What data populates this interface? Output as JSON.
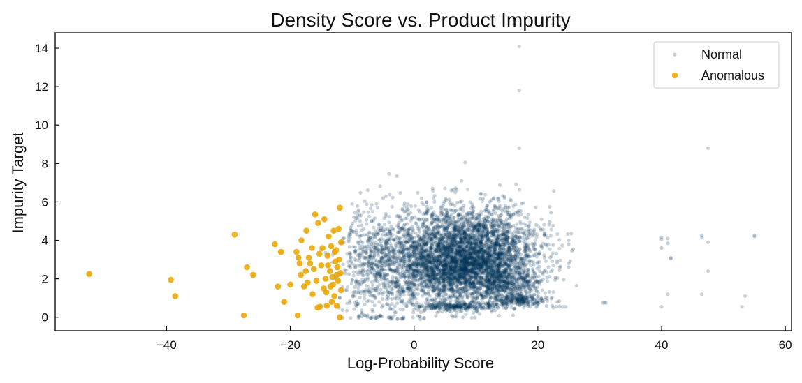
{
  "chart_data": {
    "type": "scatter",
    "title": "Density Score vs. Product Impurity",
    "xlabel": "Log-Probability Score",
    "ylabel": "Impurity Target",
    "xlim": [
      -58,
      61
    ],
    "ylim": [
      -0.7,
      14.8
    ],
    "xticks": [
      -40,
      -20,
      0,
      20,
      40,
      60
    ],
    "yticks": [
      0,
      2,
      4,
      6,
      8,
      10,
      12,
      14
    ],
    "xtick_labels": [
      "−40",
      "−20",
      "0",
      "20",
      "40",
      "60"
    ],
    "ytick_labels": [
      "0",
      "2",
      "4",
      "6",
      "8",
      "10",
      "12",
      "14"
    ],
    "grid": false,
    "legend_position": "top-right",
    "series": [
      {
        "name": "Normal",
        "color": "#003057",
        "opacity": 0.22,
        "marker_radius": 2.6,
        "points": [
          [
            17,
            14.1
          ],
          [
            17,
            11.8
          ],
          [
            17,
            8.8
          ],
          [
            47.5,
            8.8
          ],
          [
            47.5,
            3.9
          ],
          [
            47.5,
            2.4
          ],
          [
            25,
            4.0
          ],
          [
            25,
            3.8
          ],
          [
            25,
            2.8
          ],
          [
            25,
            2.6
          ],
          [
            40,
            4.15
          ],
          [
            40,
            4.05
          ],
          [
            40,
            3.6
          ],
          [
            40,
            0.55
          ],
          [
            41,
            4.1
          ],
          [
            41,
            3.85
          ],
          [
            41.5,
            3.1
          ],
          [
            41.5,
            3.05
          ],
          [
            41,
            1.2
          ],
          [
            46.5,
            4.25
          ],
          [
            46.5,
            4.15
          ],
          [
            46.5,
            1.2
          ],
          [
            53,
            0.55
          ],
          [
            53.5,
            1.1
          ],
          [
            55,
            4.25
          ],
          [
            55,
            4.2
          ],
          [
            30.5,
            0.75
          ],
          [
            31,
            0.75
          ],
          [
            30.8,
            0.76
          ],
          [
            22.5,
            0.5
          ],
          [
            23,
            0.55
          ],
          [
            23.5,
            0.57
          ],
          [
            24,
            0.55
          ],
          [
            24.5,
            0.55
          ],
          [
            16,
            0.1
          ],
          [
            -9,
            0.05
          ],
          [
            -10,
            5.9
          ],
          [
            -5,
            6.2
          ],
          [
            3,
            6.7
          ],
          [
            5,
            6.7
          ],
          [
            6,
            6.6
          ]
        ],
        "clusters": [
          {
            "cx": 8,
            "cy": 2.8,
            "sx": 5.5,
            "sy": 0.95,
            "n": 2600
          },
          {
            "cx": 2,
            "cy": 3.2,
            "sx": 4.5,
            "sy": 1.3,
            "n": 900
          },
          {
            "cx": 12,
            "cy": 3.6,
            "sx": 4.5,
            "sy": 1.1,
            "n": 900
          },
          {
            "cx": -5,
            "cy": 2.5,
            "sx": 3.5,
            "sy": 1.5,
            "n": 400
          },
          {
            "cx": 15,
            "cy": 1.7,
            "sx": 3,
            "sy": 0.4,
            "n": 350
          },
          {
            "cx": 17,
            "cy": 0.9,
            "sx": 2.2,
            "sy": 0.15,
            "n": 200
          },
          {
            "cx": 7,
            "cy": 0.55,
            "sx": 4,
            "sy": 0.12,
            "n": 250
          },
          {
            "cx": 9,
            "cy": 4.8,
            "sx": 5,
            "sy": 0.6,
            "n": 300
          },
          {
            "cx": -8,
            "cy": 2.8,
            "sx": 2,
            "sy": 1.6,
            "n": 150
          }
        ]
      },
      {
        "name": "Anomalous",
        "color": "#E8A600",
        "opacity": 0.88,
        "marker_radius": 4.3,
        "points": [
          [
            -52.5,
            2.25
          ],
          [
            -39.3,
            1.95
          ],
          [
            -38.6,
            1.1
          ],
          [
            -29,
            4.3
          ],
          [
            -27.5,
            0.1
          ],
          [
            -27,
            2.6
          ],
          [
            -26,
            2.2
          ],
          [
            -22.5,
            3.8
          ],
          [
            -22,
            1.6
          ],
          [
            -21.5,
            3.4
          ],
          [
            -21,
            0.8
          ],
          [
            -20,
            1.7
          ],
          [
            -19,
            3.4
          ],
          [
            -18.7,
            3.1
          ],
          [
            -18.5,
            2.8
          ],
          [
            -18.3,
            2.2
          ],
          [
            -18.2,
            4.0
          ],
          [
            -17.8,
            1.6
          ],
          [
            -17.5,
            2.4
          ],
          [
            -17.2,
            1.8
          ],
          [
            -17,
            3.1
          ],
          [
            -16.8,
            2.8
          ],
          [
            -16.5,
            3.6
          ],
          [
            -16.2,
            2.5
          ],
          [
            -16,
            5.35
          ],
          [
            -15.8,
            1.9
          ],
          [
            -15.5,
            4.9
          ],
          [
            -15.3,
            3.3
          ],
          [
            -15.2,
            0.55
          ],
          [
            -15,
            2.7
          ],
          [
            -14.8,
            3.6
          ],
          [
            -14.6,
            1.5
          ],
          [
            -14.5,
            5.1
          ],
          [
            -14.3,
            2.0
          ],
          [
            -14.1,
            0.6
          ],
          [
            -14,
            3.2
          ],
          [
            -13.8,
            4.2
          ],
          [
            -13.6,
            2.4
          ],
          [
            -13.5,
            1.6
          ],
          [
            -13.4,
            3.7
          ],
          [
            -13.2,
            2.1
          ],
          [
            -13,
            4.5
          ],
          [
            -12.9,
            1.1
          ],
          [
            -12.7,
            2.9
          ],
          [
            -12.6,
            3.5
          ],
          [
            -12.5,
            0.6
          ],
          [
            -12.4,
            2.6
          ],
          [
            -12.3,
            1.9
          ],
          [
            -12.2,
            4.6
          ],
          [
            -12.1,
            3.0
          ],
          [
            -12,
            5.7
          ],
          [
            -12,
            0.0
          ],
          [
            -11.9,
            2.3
          ],
          [
            -11.8,
            1.4
          ],
          [
            -11.8,
            3.9
          ],
          [
            -13.3,
            0.8
          ],
          [
            -14.2,
            1.3
          ],
          [
            -15.6,
            0.5
          ],
          [
            -18.8,
            0.1
          ],
          [
            -17.4,
            4.5
          ],
          [
            -16.4,
            1.2
          ],
          [
            -13.9,
            2.7
          ],
          [
            -12.8,
            3.4
          ],
          [
            -12.5,
            2.2
          ],
          [
            -13.1,
            1.7
          ]
        ]
      }
    ]
  }
}
